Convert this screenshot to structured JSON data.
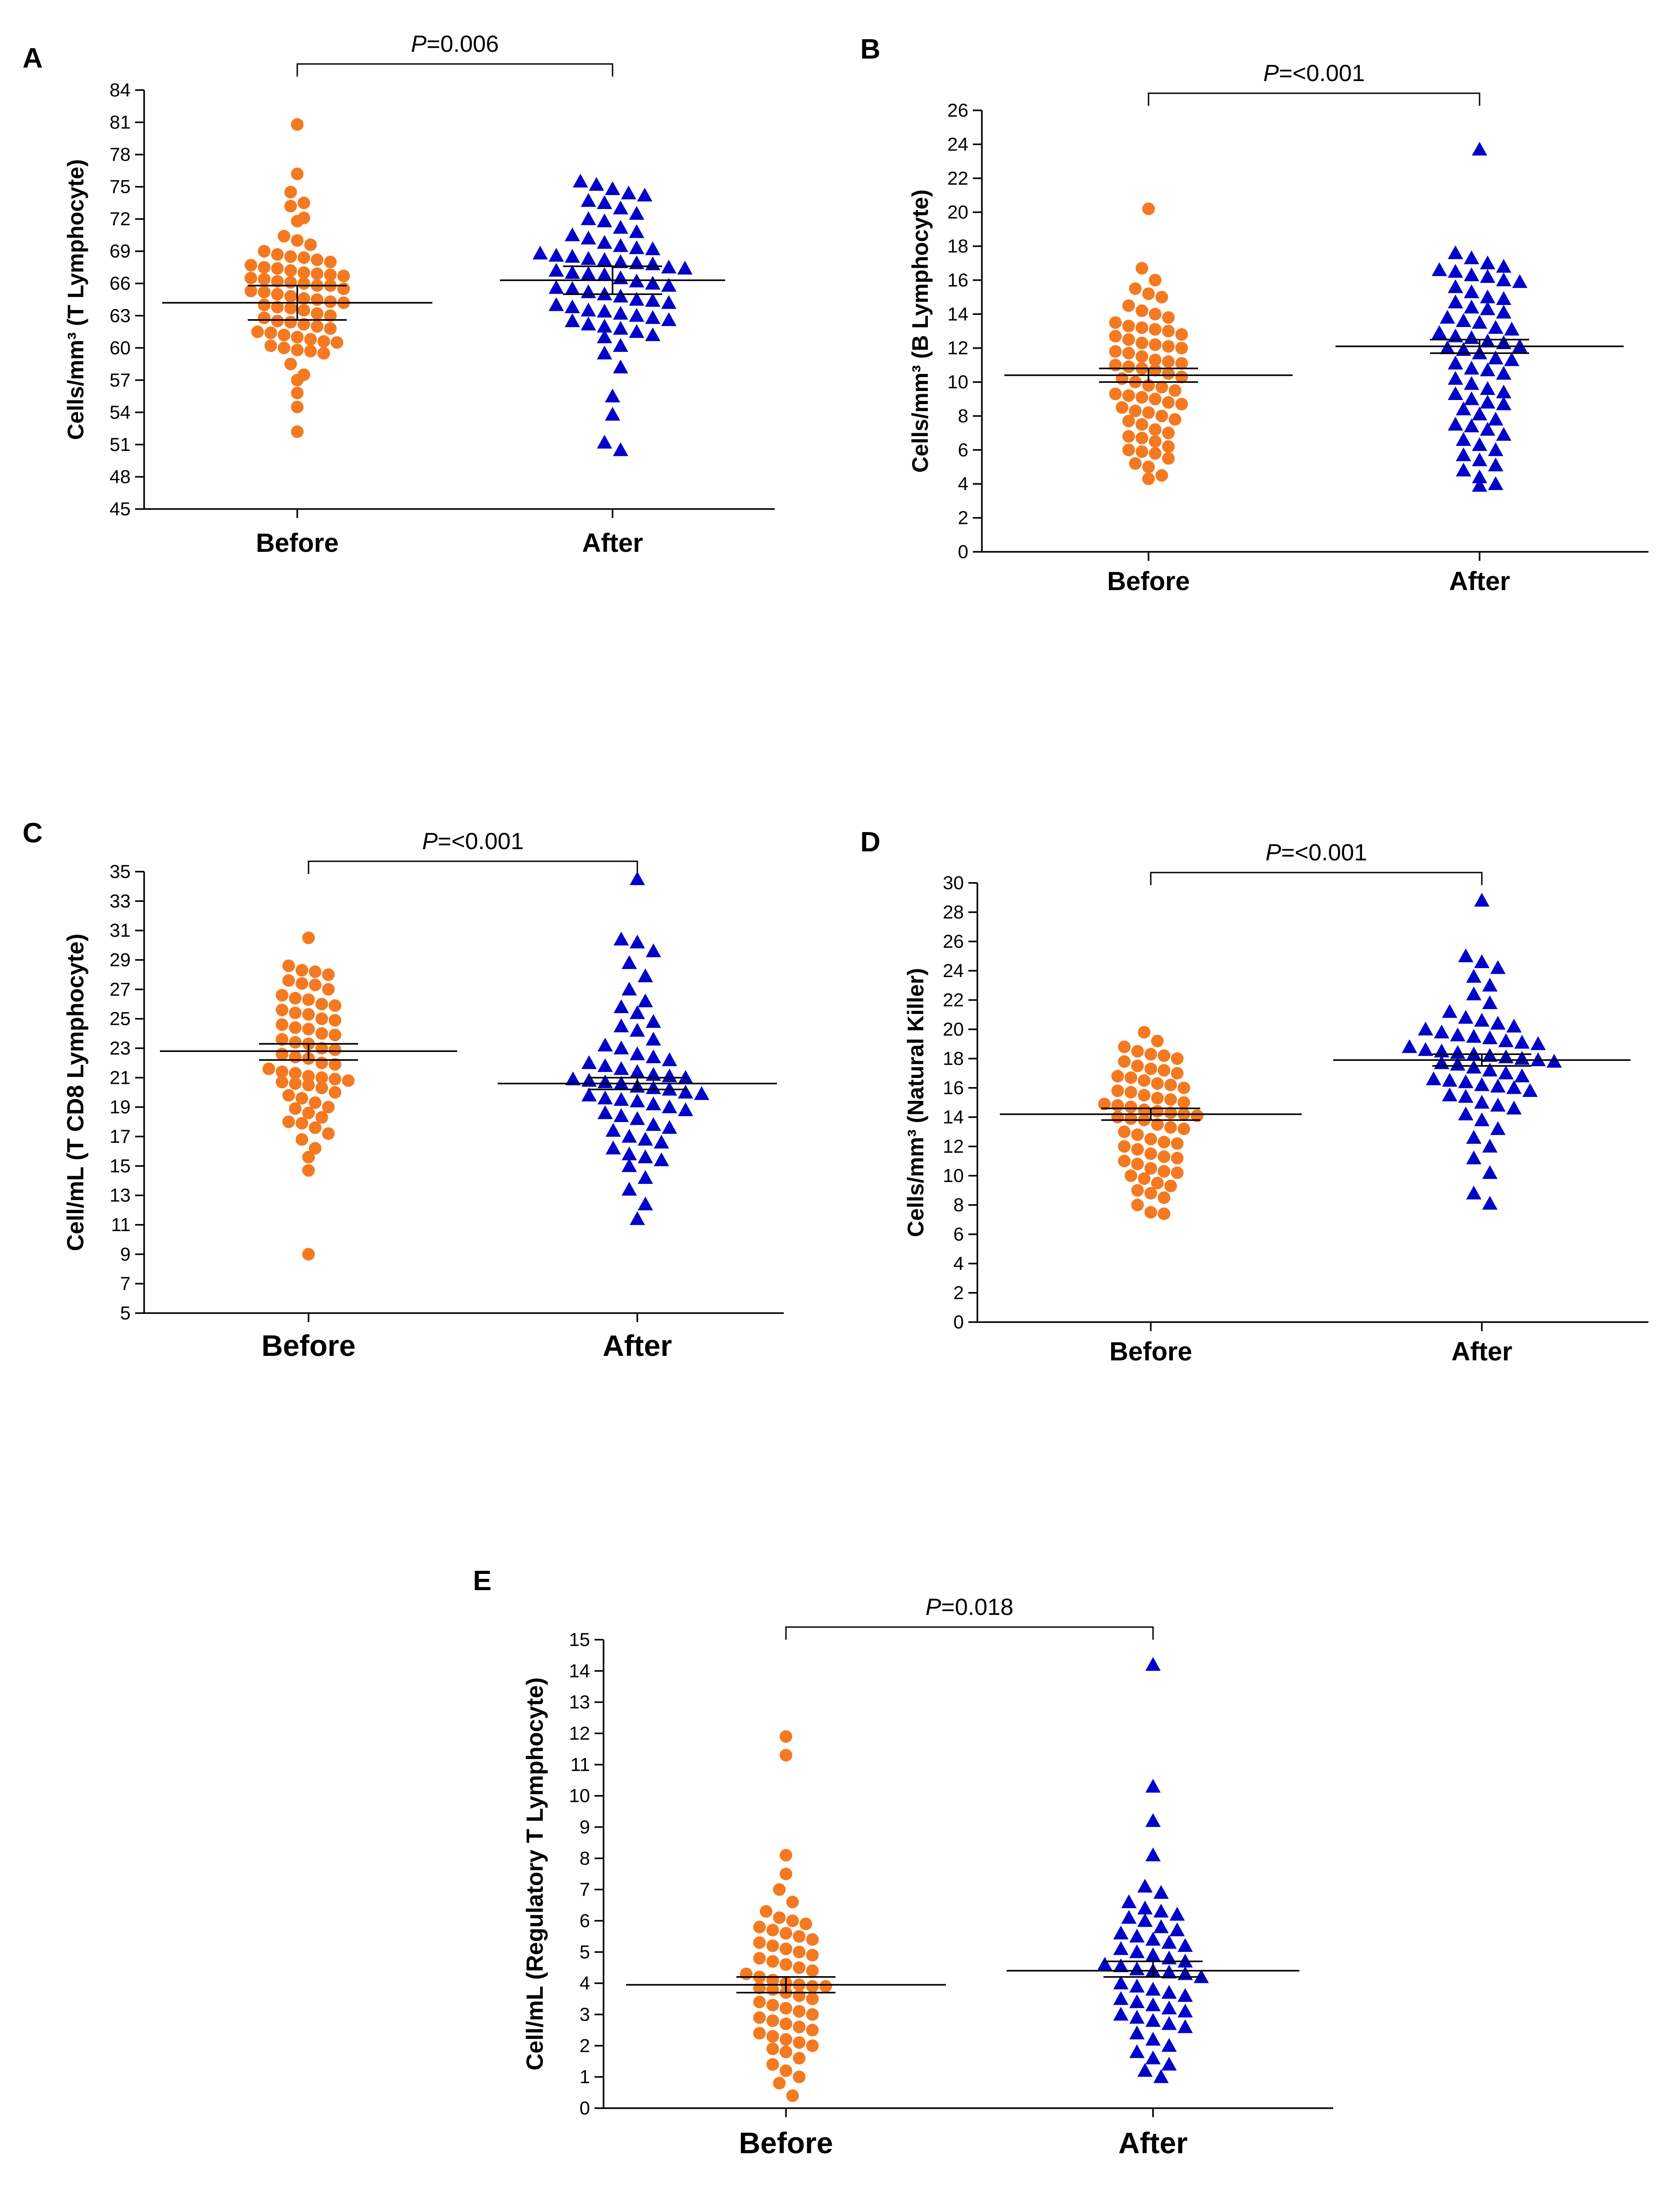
{
  "colors": {
    "before": "#F47920",
    "after": "#0000C8",
    "axis": "#000000"
  },
  "chart_data": [
    {
      "type": "scatter",
      "panel": "A",
      "title": "",
      "ylabel": "Cells/mm³ (T Lymphocyte)",
      "ylim": [
        45,
        84
      ],
      "yticks": [
        "45",
        "48",
        "51",
        "54",
        "57",
        "60",
        "63",
        "66",
        "69",
        "72",
        "75",
        "78",
        "81",
        "84"
      ],
      "categories": [
        "Before",
        "After"
      ],
      "p_prefix": "P",
      "p_suffix": "=0.006",
      "series": [
        {
          "name": "Before",
          "marker": "circle",
          "mean": 64.2,
          "sem_low": 62.6,
          "sem_high": 65.8,
          "values": [
            80.8,
            76.2,
            74.5,
            73.5,
            73.2,
            72.1,
            71.8,
            70.4,
            70.0,
            69.6,
            69.0,
            68.5,
            68.2,
            68.0,
            67.5,
            67.2,
            67.0,
            66.8,
            66.5,
            66.2,
            66.0,
            65.8,
            65.5,
            65.2,
            65.0,
            64.8,
            64.5,
            64.2,
            64.0,
            63.8,
            63.5,
            63.2,
            63.0,
            62.8,
            62.5,
            62.2,
            62.0,
            61.8,
            61.5,
            61.2,
            61.0,
            60.8,
            60.5,
            60.2,
            60.0,
            59.8,
            59.5,
            58.5,
            57.5,
            57.0,
            55.8,
            54.5,
            52.2,
            65.8,
            66.1,
            66.4,
            67.4,
            68.4,
            66.9,
            64.6,
            63.7,
            62.4,
            61.4,
            60.6,
            59.7,
            65.3,
            66.7,
            67.7,
            68.7,
            64.3
          ]
        },
        {
          "name": "After",
          "marker": "triangle",
          "mean": 66.3,
          "sem_low": 65.0,
          "sem_high": 67.6,
          "values": [
            75.5,
            75.2,
            74.8,
            74.2,
            73.5,
            73.0,
            72.5,
            71.8,
            71.2,
            70.8,
            70.2,
            69.8,
            69.5,
            69.2,
            68.8,
            68.5,
            68.2,
            68.0,
            67.8,
            67.5,
            67.2,
            67.0,
            66.8,
            66.5,
            66.2,
            66.0,
            65.8,
            65.5,
            65.2,
            65.0,
            64.8,
            64.5,
            64.2,
            64.0,
            63.8,
            63.5,
            63.2,
            63.0,
            62.8,
            62.5,
            62.2,
            62.0,
            61.8,
            61.5,
            61.2,
            61.0,
            60.2,
            59.5,
            58.2,
            55.5,
            53.8,
            51.2,
            50.5,
            68.3,
            67.9,
            67.4,
            66.9,
            68.6,
            69.3,
            70.5,
            72.0,
            73.7,
            74.4,
            65.6,
            64.4,
            63.4,
            62.6
          ]
        }
      ]
    },
    {
      "type": "scatter",
      "panel": "B",
      "title": "",
      "ylabel": "Cells/mm³ (B Lymphocyte)",
      "ylim": [
        0,
        26
      ],
      "yticks": [
        "0",
        "2",
        "4",
        "6",
        "8",
        "10",
        "12",
        "14",
        "16",
        "18",
        "20",
        "22",
        "24",
        "26"
      ],
      "categories": [
        "Before",
        "After"
      ],
      "p_prefix": "P",
      "p_suffix": "=<0.001",
      "series": [
        {
          "name": "Before",
          "marker": "circle",
          "mean": 10.4,
          "sem_low": 10.0,
          "sem_high": 10.8,
          "values": [
            20.2,
            16.7,
            16.0,
            15.5,
            15.2,
            15.0,
            14.5,
            14.0,
            13.8,
            13.5,
            13.2,
            13.0,
            12.8,
            12.5,
            12.2,
            12.0,
            11.8,
            11.5,
            11.2,
            11.0,
            10.8,
            10.5,
            10.2,
            10.0,
            9.8,
            9.5,
            9.2,
            9.0,
            8.8,
            8.5,
            8.2,
            8.0,
            7.8,
            7.5,
            7.2,
            7.0,
            6.8,
            6.5,
            6.2,
            6.0,
            5.8,
            5.5,
            5.2,
            5.0,
            4.5,
            4.3,
            11.7,
            11.3,
            10.7,
            10.3,
            9.7,
            12.3,
            12.7,
            13.3,
            14.2,
            9.3,
            8.7,
            7.7,
            6.7,
            5.9,
            11.1,
            10.9,
            12.1,
            13.1,
            9.1,
            8.3
          ]
        },
        {
          "name": "After",
          "marker": "triangle",
          "mean": 12.1,
          "sem_low": 11.7,
          "sem_high": 12.5,
          "values": [
            23.7,
            17.6,
            17.3,
            17.0,
            16.8,
            16.5,
            16.2,
            16.0,
            15.6,
            15.3,
            15.0,
            14.7,
            14.4,
            14.1,
            13.8,
            13.5,
            13.2,
            12.9,
            12.6,
            12.3,
            12.0,
            11.7,
            11.4,
            11.1,
            10.8,
            10.5,
            10.2,
            9.9,
            9.6,
            9.3,
            9.0,
            8.7,
            8.4,
            8.1,
            7.8,
            7.5,
            7.2,
            6.9,
            6.6,
            6.3,
            6.0,
            5.7,
            5.4,
            5.1,
            4.8,
            4.4,
            4.0,
            3.9,
            12.4,
            12.1,
            11.9,
            12.7,
            13.1,
            13.6,
            14.3,
            11.3,
            10.7,
            9.4,
            8.8,
            7.4,
            16.6,
            16.3,
            15.9,
            14.9
          ]
        }
      ]
    },
    {
      "type": "scatter",
      "panel": "C",
      "title": "",
      "ylabel": "Cell/mL (T CD8 Lymphocyte)",
      "ylim": [
        5,
        35
      ],
      "yticks": [
        "5",
        "7",
        "9",
        "11",
        "13",
        "15",
        "17",
        "19",
        "21",
        "23",
        "25",
        "27",
        "29",
        "31",
        "33",
        "35"
      ],
      "categories": [
        "Before",
        "After"
      ],
      "p_prefix": "P",
      "p_suffix": "=<0.001",
      "series": [
        {
          "name": "Before",
          "marker": "circle",
          "mean": 22.8,
          "sem_low": 22.2,
          "sem_high": 23.3,
          "values": [
            30.5,
            28.6,
            28.2,
            28.0,
            27.6,
            27.3,
            27.0,
            26.6,
            26.3,
            26.0,
            25.6,
            25.3,
            25.0,
            24.6,
            24.3,
            24.0,
            23.6,
            23.3,
            23.0,
            22.6,
            22.3,
            22.0,
            21.6,
            21.3,
            21.0,
            20.8,
            20.6,
            20.3,
            20.0,
            19.6,
            19.3,
            19.0,
            18.6,
            18.3,
            18.0,
            17.6,
            17.2,
            16.8,
            16.2,
            15.6,
            14.7,
            9.0,
            20.7,
            20.9,
            21.1,
            20.5,
            21.4,
            22.4,
            23.4,
            24.4,
            25.4,
            26.4,
            27.4,
            28.3,
            22.9,
            21.9,
            23.9,
            24.9,
            25.9,
            19.8,
            18.9,
            17.9
          ]
        },
        {
          "name": "After",
          "marker": "triangle",
          "mean": 20.6,
          "sem_low": 20.2,
          "sem_high": 21.0,
          "values": [
            34.5,
            30.4,
            30.2,
            29.6,
            28.8,
            27.9,
            27.0,
            26.2,
            25.4,
            24.8,
            24.2,
            23.6,
            23.0,
            22.6,
            22.2,
            21.8,
            21.4,
            21.0,
            20.8,
            20.6,
            20.4,
            20.2,
            20.0,
            19.8,
            19.6,
            19.4,
            19.2,
            19.0,
            18.6,
            18.2,
            17.8,
            17.4,
            17.0,
            16.6,
            16.2,
            15.8,
            15.4,
            15.0,
            14.2,
            13.4,
            12.4,
            11.4,
            21.2,
            21.6,
            20.3,
            19.9,
            19.5,
            22.4,
            23.2,
            24.5,
            25.8,
            18.8,
            18.4,
            17.6,
            16.8,
            21.1,
            20.9,
            20.7,
            22.0,
            15.6
          ]
        }
      ]
    },
    {
      "type": "scatter",
      "panel": "D",
      "title": "",
      "ylabel": "Cells/mm³ (Natural Killer)",
      "ylim": [
        0,
        30
      ],
      "yticks": [
        "0",
        "2",
        "4",
        "6",
        "8",
        "10",
        "12",
        "14",
        "16",
        "18",
        "20",
        "22",
        "24",
        "26",
        "28",
        "30"
      ],
      "categories": [
        "Before",
        "After"
      ],
      "p_prefix": "P",
      "p_suffix": "=<0.001",
      "series": [
        {
          "name": "Before",
          "marker": "circle",
          "mean": 14.2,
          "sem_low": 13.8,
          "sem_high": 14.6,
          "values": [
            19.8,
            19.2,
            18.8,
            18.5,
            18.2,
            18.0,
            17.8,
            17.5,
            17.2,
            17.0,
            16.8,
            16.5,
            16.2,
            16.0,
            15.8,
            15.5,
            15.2,
            15.0,
            14.8,
            14.5,
            14.2,
            14.0,
            13.8,
            13.5,
            13.2,
            13.0,
            12.8,
            12.5,
            12.2,
            12.0,
            11.8,
            11.5,
            11.2,
            11.0,
            10.8,
            10.5,
            10.2,
            10.0,
            9.8,
            9.5,
            9.0,
            8.8,
            8.5,
            8.0,
            7.5,
            7.4,
            14.1,
            14.3,
            14.4,
            13.9,
            14.7,
            15.3,
            16.3,
            17.3,
            18.3,
            13.3,
            12.3,
            11.3,
            10.3,
            9.3,
            16.7,
            15.7,
            14.9
          ]
        },
        {
          "name": "After",
          "marker": "triangle",
          "mean": 17.9,
          "sem_low": 17.5,
          "sem_high": 18.3,
          "values": [
            28.8,
            25.0,
            24.6,
            24.2,
            23.6,
            23.0,
            22.4,
            21.8,
            21.2,
            20.8,
            20.6,
            20.4,
            20.2,
            20.0,
            19.8,
            19.6,
            19.4,
            19.2,
            19.0,
            18.8,
            18.6,
            18.4,
            18.2,
            18.0,
            17.8,
            17.6,
            17.4,
            17.2,
            17.0,
            16.8,
            16.6,
            16.4,
            16.2,
            16.0,
            15.8,
            15.4,
            15.0,
            14.6,
            14.2,
            13.8,
            13.2,
            12.6,
            12.0,
            11.2,
            10.2,
            8.8,
            8.1,
            17.9,
            18.1,
            17.7,
            18.3,
            18.5,
            19.1,
            19.5,
            16.5,
            16.1,
            15.5,
            14.8
          ]
        }
      ]
    },
    {
      "type": "scatter",
      "panel": "E",
      "title": "",
      "ylabel": "Cell/mL (Regulatory T Lymphocyte)",
      "ylim": [
        0,
        15
      ],
      "yticks": [
        "0",
        "1",
        "2",
        "3",
        "4",
        "5",
        "6",
        "7",
        "8",
        "9",
        "10",
        "11",
        "12",
        "13",
        "14",
        "15"
      ],
      "categories": [
        "Before",
        "After"
      ],
      "p_prefix": "P",
      "p_suffix": "=0.018",
      "series": [
        {
          "name": "Before",
          "marker": "circle",
          "mean": 3.95,
          "sem_low": 3.7,
          "sem_high": 4.2,
          "values": [
            11.9,
            11.3,
            8.1,
            7.5,
            7.0,
            6.6,
            6.3,
            6.0,
            5.8,
            5.6,
            5.4,
            5.2,
            5.0,
            4.8,
            4.6,
            4.4,
            4.2,
            4.0,
            3.9,
            3.8,
            3.7,
            3.6,
            3.5,
            3.4,
            3.2,
            3.0,
            2.8,
            2.6,
            2.4,
            2.2,
            2.0,
            1.8,
            1.6,
            1.4,
            1.2,
            1.0,
            0.8,
            0.4,
            3.9,
            3.85,
            3.95,
            4.1,
            4.3,
            4.5,
            4.7,
            4.9,
            5.1,
            5.3,
            5.5,
            5.7,
            3.3,
            3.1,
            2.9,
            2.7,
            2.5,
            2.3,
            2.1,
            1.9,
            6.1,
            5.9
          ]
        },
        {
          "name": "After",
          "marker": "triangle",
          "mean": 4.4,
          "sem_low": 4.2,
          "sem_high": 4.7,
          "values": [
            14.2,
            10.3,
            9.2,
            8.1,
            7.1,
            6.9,
            6.6,
            6.4,
            6.2,
            6.0,
            5.8,
            5.6,
            5.4,
            5.2,
            5.0,
            4.8,
            4.6,
            4.4,
            4.3,
            4.2,
            4.0,
            3.8,
            3.6,
            3.4,
            3.2,
            3.0,
            2.8,
            2.6,
            2.4,
            2.2,
            2.0,
            1.8,
            1.6,
            1.4,
            1.2,
            1.0,
            4.45,
            4.35,
            4.55,
            4.7,
            4.9,
            5.1,
            5.3,
            5.5,
            5.7,
            3.9,
            3.7,
            3.5,
            3.3,
            3.1,
            2.9,
            2.7,
            6.3,
            6.1
          ]
        }
      ]
    }
  ]
}
